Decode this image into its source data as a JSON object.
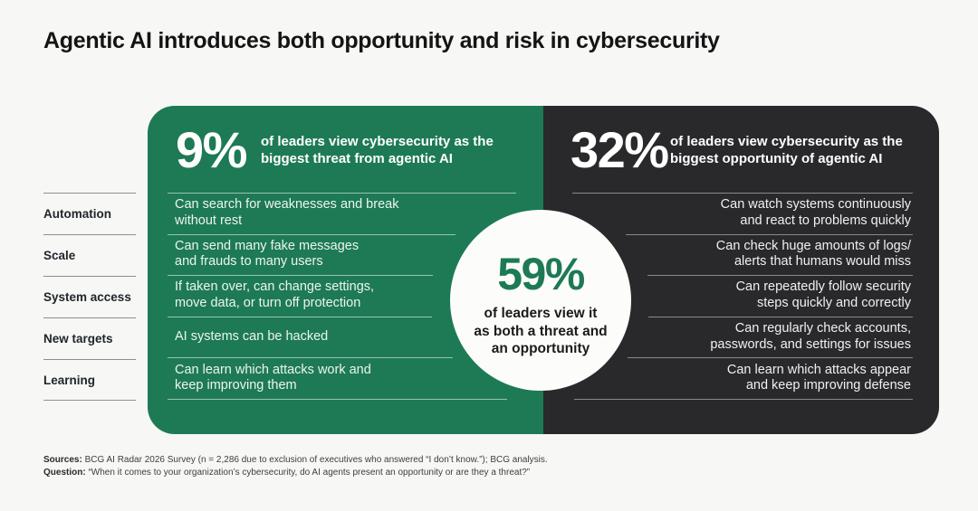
{
  "title": "Agentic AI introduces both opportunity and risk in cybersecurity",
  "colors": {
    "green": "#1d7a55",
    "dark": "#29292b",
    "background": "#f7f7f5",
    "circle": "#fcfcfa"
  },
  "sidebar": {
    "items": [
      "Automation",
      "Scale",
      "System access",
      "New targets",
      "Learning"
    ]
  },
  "threat_panel": {
    "stat": "9%",
    "description": "of leaders view cybersecurity as the\nbiggest threat from agentic AI",
    "items": [
      "Can search for weaknesses and break\nwithout rest",
      "Can send many fake messages\nand frauds to many users",
      "If taken over, can change settings,\nmove data, or turn off protection",
      "AI systems can be hacked",
      "Can learn which attacks work and\nkeep improving them"
    ]
  },
  "opportunity_panel": {
    "stat": "32%",
    "description": "of leaders view cybersecurity as the\nbiggest opportunity of agentic AI",
    "items": [
      "Can watch systems continuously\nand react to problems quickly",
      "Can check huge amounts of logs/\nalerts that humans would miss",
      "Can repeatedly follow security\nsteps quickly and correctly",
      "Can regularly check accounts,\npasswords, and settings for issues",
      "Can learn which attacks appear\nand keep improving defense"
    ]
  },
  "center": {
    "stat": "59%",
    "description": "of leaders view it\nas both a threat and\nan opportunity"
  },
  "footer": {
    "sources_label": "Sources:",
    "sources_text": " BCG AI Radar 2026 Survey (n = 2,286 due to exclusion of executives who answered “I don’t know.”); BCG analysis.",
    "question_label": "Question:",
    "question_text": " “When it comes to your organization’s cybersecurity, do AI agents present an opportunity or are they a threat?”"
  },
  "chart_data": {
    "type": "table",
    "title": "Agentic AI introduces both opportunity and risk in cybersecurity",
    "categories": [
      "of leaders view cybersecurity as the biggest threat from agentic AI",
      "of leaders view cybersecurity as the biggest opportunity of agentic AI",
      "of leaders view it as both a threat and an opportunity"
    ],
    "values": [
      9,
      32,
      59
    ],
    "unit": "%",
    "row_labels": [
      "Automation",
      "Scale",
      "System access",
      "New targets",
      "Learning"
    ],
    "threat_items": [
      "Can search for weaknesses and break without rest",
      "Can send many fake messages and frauds to many users",
      "If taken over, can change settings, move data, or turn off protection",
      "AI systems can be hacked",
      "Can learn which attacks work and keep improving them"
    ],
    "opportunity_items": [
      "Can watch systems continuously and react to problems quickly",
      "Can check huge amounts of logs/alerts that humans would miss",
      "Can repeatedly follow security steps quickly and correctly",
      "Can regularly check accounts, passwords, and settings for issues",
      "Can learn which attacks appear and keep improving defense"
    ]
  }
}
